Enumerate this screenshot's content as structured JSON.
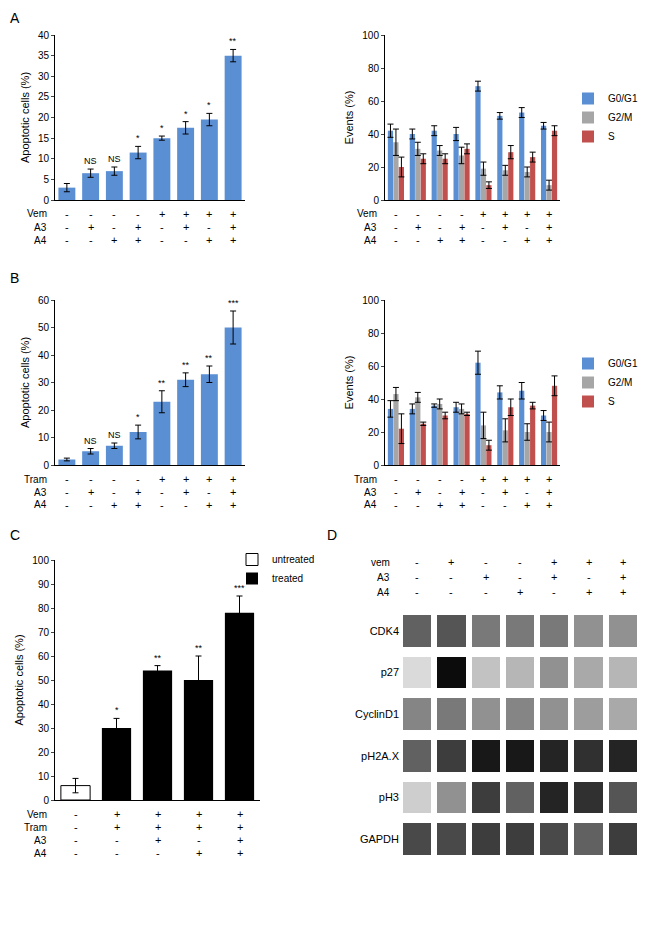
{
  "chart_data": [
    {
      "type": "bar",
      "panel": "A",
      "y_label": "Apoptotic cells (%)",
      "categories": [
        null,
        null,
        null,
        null,
        null,
        null,
        null,
        null
      ],
      "values": [
        3,
        6.5,
        7,
        11.5,
        15,
        17.5,
        19.5,
        35
      ],
      "errors": [
        1,
        1,
        1,
        1.5,
        0.5,
        1.5,
        1.5,
        1.5
      ],
      "color": "#5b8fd4",
      "significance": [
        null,
        "NS",
        "NS",
        "*",
        "*",
        "*",
        "*",
        "**"
      ],
      "treatments": [
        {
          "name": "Vem",
          "signs": [
            "-",
            "-",
            "-",
            "-",
            "+",
            "+",
            "+",
            "+"
          ]
        },
        {
          "name": "A3",
          "signs": [
            "-",
            "+",
            "-",
            "+",
            "-",
            "+",
            "-",
            "+"
          ]
        },
        {
          "name": "A4",
          "signs": [
            "-",
            "-",
            "+",
            "+",
            "-",
            "-",
            "+",
            "+"
          ]
        }
      ],
      "ylim": [
        0,
        40
      ],
      "yticks": [
        0,
        5,
        10,
        15,
        20,
        25,
        30,
        35,
        40
      ],
      "grid": false,
      "tick_labels": "y"
    },
    {
      "type": "bar",
      "y_label": "Events (%)",
      "categories": [
        null,
        null,
        null,
        null,
        null,
        null,
        null,
        null
      ],
      "series": [
        {
          "name": "G0/G1",
          "color": "#5b8fd4",
          "values": [
            42,
            40,
            42,
            40,
            69,
            51,
            53,
            45
          ],
          "errors": [
            4,
            3,
            3,
            4,
            3,
            2,
            3,
            2
          ]
        },
        {
          "name": "G2/M",
          "color": "#a6a6a6",
          "values": [
            35,
            31,
            30,
            27,
            19,
            18,
            17,
            9
          ],
          "errors": [
            8,
            4,
            3,
            5,
            4,
            3,
            3,
            3
          ]
        },
        {
          "name": "S",
          "color": "#c0504d",
          "values": [
            20,
            25,
            25,
            31,
            9,
            29,
            26,
            42
          ],
          "errors": [
            6,
            3,
            3,
            3,
            2,
            4,
            3,
            3
          ]
        }
      ],
      "treatments": [
        {
          "name": "Vem",
          "signs": [
            "-",
            "-",
            "-",
            "-",
            "+",
            "+",
            "+",
            "+"
          ]
        },
        {
          "name": "A3",
          "signs": [
            "-",
            "+",
            "-",
            "+",
            "-",
            "+",
            "-",
            "+"
          ]
        },
        {
          "name": "A4",
          "signs": [
            "-",
            "-",
            "+",
            "+",
            "-",
            "-",
            "+",
            "+"
          ]
        }
      ],
      "ylim": [
        0,
        100
      ],
      "yticks": [
        0,
        20,
        40,
        60,
        80,
        100
      ],
      "grid": false,
      "legend": "right",
      "tick_labels": "y"
    },
    {
      "type": "bar",
      "panel": "B",
      "y_label": "Apoptotic cells (%)",
      "categories": [
        null,
        null,
        null,
        null,
        null,
        null,
        null,
        null
      ],
      "values": [
        2,
        5,
        7,
        12,
        23,
        31,
        33,
        50
      ],
      "errors": [
        0.5,
        1,
        1,
        2.5,
        4,
        2.5,
        3,
        6
      ],
      "color": "#5b8fd4",
      "significance": [
        null,
        "NS",
        "NS",
        "*",
        "**",
        "**",
        "**",
        "***"
      ],
      "treatments": [
        {
          "name": "Tram",
          "signs": [
            "-",
            "-",
            "-",
            "-",
            "+",
            "+",
            "+",
            "+"
          ]
        },
        {
          "name": "A3",
          "signs": [
            "-",
            "+",
            "-",
            "+",
            "-",
            "+",
            "-",
            "+"
          ]
        },
        {
          "name": "A4",
          "signs": [
            "-",
            "-",
            "+",
            "+",
            "-",
            "-",
            "+",
            "+"
          ]
        }
      ],
      "ylim": [
        0,
        60
      ],
      "yticks": [
        0,
        10,
        20,
        30,
        40,
        50,
        60
      ],
      "grid": false,
      "tick_labels": "y"
    },
    {
      "type": "bar",
      "y_label": "Events (%)",
      "categories": [
        null,
        null,
        null,
        null,
        null,
        null,
        null,
        null
      ],
      "series": [
        {
          "name": "G0/G1",
          "color": "#5b8fd4",
          "values": [
            34,
            34,
            36,
            35,
            62,
            44,
            45,
            30
          ],
          "errors": [
            5,
            3,
            1,
            3,
            7,
            4,
            5,
            3
          ]
        },
        {
          "name": "G2/M",
          "color": "#a6a6a6",
          "values": [
            43,
            41,
            37,
            34,
            24,
            21,
            20,
            20
          ],
          "errors": [
            4,
            3,
            3,
            3,
            8,
            7,
            5,
            6
          ]
        },
        {
          "name": "S",
          "color": "#c0504d",
          "values": [
            22,
            25,
            30,
            31,
            12,
            35,
            36,
            48
          ],
          "errors": [
            9,
            1,
            2,
            1,
            3,
            5,
            2,
            6
          ]
        }
      ],
      "treatments": [
        {
          "name": "Tram",
          "signs": [
            "-",
            "-",
            "-",
            "-",
            "+",
            "+",
            "+",
            "+"
          ]
        },
        {
          "name": "A3",
          "signs": [
            "-",
            "+",
            "-",
            "+",
            "-",
            "+",
            "-",
            "+"
          ]
        },
        {
          "name": "A4",
          "signs": [
            "-",
            "-",
            "+",
            "+",
            "-",
            "-",
            "+",
            "+"
          ]
        }
      ],
      "ylim": [
        0,
        100
      ],
      "yticks": [
        0,
        20,
        40,
        60,
        80,
        100
      ],
      "grid": false,
      "legend": "right",
      "tick_labels": "y"
    },
    {
      "type": "bar",
      "panel": "C",
      "y_label": "Apoptotic cells (%)",
      "categories": [
        null,
        null,
        null,
        null,
        null
      ],
      "series": [
        {
          "name": "untreated",
          "color": "#ffffff",
          "values": [
            6,
            null,
            null,
            null,
            null
          ],
          "errors": [
            3,
            null,
            null,
            null,
            null
          ]
        },
        {
          "name": "treated",
          "color": "#000000",
          "values": [
            null,
            30,
            54,
            50,
            78
          ],
          "errors": [
            null,
            4,
            2,
            10,
            7
          ]
        }
      ],
      "significance": [
        null,
        "*",
        "**",
        "**",
        "***"
      ],
      "treatments": [
        {
          "name": "Vem",
          "signs": [
            "-",
            "+",
            "+",
            "+",
            "+"
          ]
        },
        {
          "name": "Tram",
          "signs": [
            "-",
            "+",
            "+",
            "+",
            "+"
          ]
        },
        {
          "name": "A3",
          "signs": [
            "-",
            "-",
            "+",
            "-",
            "+"
          ]
        },
        {
          "name": "A4",
          "signs": [
            "-",
            "-",
            "-",
            "+",
            "+"
          ]
        }
      ],
      "ylim": [
        0,
        100
      ],
      "yticks": [
        0,
        10,
        20,
        30,
        40,
        50,
        60,
        70,
        80,
        90,
        100
      ],
      "grid": false,
      "legend": "top right",
      "tick_labels": "y"
    },
    {
      "type": "heatmap",
      "panel": "D",
      "categories": [
        null,
        null,
        null,
        null,
        null,
        null,
        null
      ],
      "y": [
        "CDK4",
        "p27",
        "CyclinD1",
        "pH2A.X",
        "pH3",
        "GAPDH"
      ],
      "cells": [
        [
          0.6,
          0.65,
          0.5,
          0.5,
          0.5,
          0.4,
          0.4
        ],
        [
          0.1,
          0.95,
          0.2,
          0.25,
          0.4,
          0.3,
          0.25
        ],
        [
          0.45,
          0.5,
          0.4,
          0.45,
          0.4,
          0.35,
          0.3
        ],
        [
          0.6,
          0.75,
          0.9,
          0.9,
          0.85,
          0.8,
          0.85
        ],
        [
          0.15,
          0.4,
          0.75,
          0.6,
          0.85,
          0.8,
          0.65
        ],
        [
          0.7,
          0.7,
          0.75,
          0.75,
          0.7,
          0.6,
          0.75
        ]
      ],
      "zlim": [
        0,
        1
      ],
      "treatments": [
        {
          "name": "vem",
          "signs": [
            "-",
            "+",
            "-",
            "-",
            "+",
            "+",
            "+"
          ]
        },
        {
          "name": "A3",
          "signs": [
            "-",
            "-",
            "+",
            "-",
            "+",
            "-",
            "+"
          ]
        },
        {
          "name": "A4",
          "signs": [
            "-",
            "-",
            "-",
            "+",
            "-",
            "+",
            "+"
          ]
        }
      ],
      "grid": false,
      "tick_labels": "y"
    }
  ]
}
